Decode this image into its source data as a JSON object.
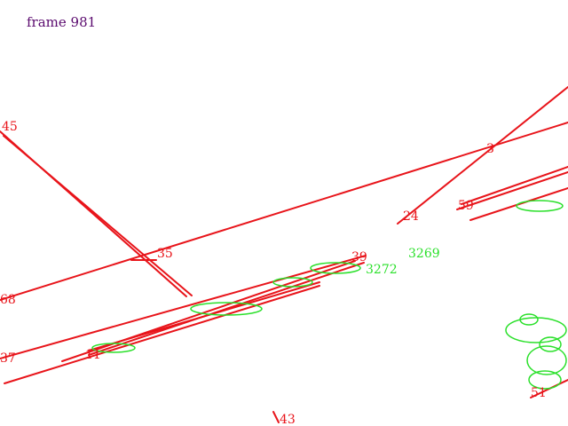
{
  "frame_label": "frame 981",
  "colors": {
    "track": "#e8141a",
    "feature": "#2be02b",
    "frame_text": "#5a0a6e"
  },
  "red_labels": [
    "45",
    "3",
    "24",
    "59",
    "35",
    "39",
    "68",
    "37",
    "11",
    "43",
    "51"
  ],
  "green_labels": [
    "3269",
    "3272"
  ]
}
